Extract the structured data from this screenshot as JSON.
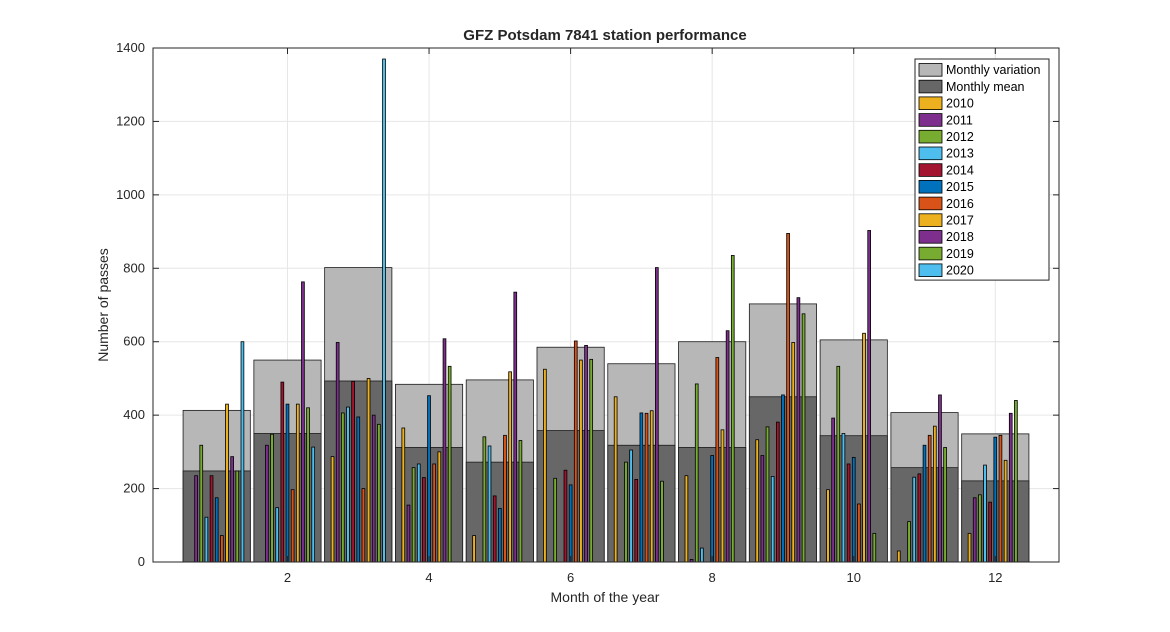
{
  "chart_data": {
    "type": "bar",
    "title": "GFZ Potsdam 7841 station performance",
    "xlabel": "Month of the year",
    "ylabel": "Number of passes",
    "xlim": [
      0.1,
      12.9
    ],
    "ylim": [
      0,
      1400
    ],
    "xticks": [
      2,
      4,
      6,
      8,
      10,
      12
    ],
    "yticks": [
      0,
      200,
      400,
      600,
      800,
      1000,
      1200,
      1400
    ],
    "grid": true,
    "legend_position": "top-right",
    "months": [
      1,
      2,
      3,
      4,
      5,
      6,
      7,
      8,
      9,
      10,
      11,
      12
    ],
    "background_series": [
      {
        "name": "Monthly variation",
        "color": "#b7b7b7",
        "values": [
          413,
          550,
          802,
          484,
          496,
          585,
          540,
          600,
          703,
          605,
          407,
          349
        ]
      },
      {
        "name": "Monthly mean",
        "color": "#676767",
        "values": [
          248,
          350,
          493,
          312,
          272,
          358,
          318,
          312,
          450,
          344,
          257,
          221
        ]
      }
    ],
    "series": [
      {
        "name": "2010",
        "color": "#EDB120",
        "values": [
          0,
          0,
          287,
          365,
          72,
          525,
          450,
          235,
          333,
          197,
          30,
          78
        ]
      },
      {
        "name": "2011",
        "color": "#7E2F8E",
        "values": [
          235,
          318,
          598,
          155,
          0,
          0,
          0,
          7,
          290,
          392,
          0,
          175
        ]
      },
      {
        "name": "2012",
        "color": "#77AC30",
        "values": [
          318,
          348,
          406,
          257,
          341,
          228,
          272,
          485,
          368,
          533,
          110,
          183
        ]
      },
      {
        "name": "2013",
        "color": "#4DBEEE",
        "values": [
          122,
          148,
          422,
          267,
          316,
          0,
          305,
          38,
          233,
          350,
          231,
          264
        ]
      },
      {
        "name": "2014",
        "color": "#A2142F",
        "values": [
          235,
          490,
          492,
          230,
          180,
          250,
          225,
          0,
          381,
          267,
          240,
          163
        ]
      },
      {
        "name": "2015",
        "color": "#0072BD",
        "values": [
          175,
          430,
          395,
          453,
          146,
          210,
          406,
          290,
          455,
          285,
          318,
          340
        ]
      },
      {
        "name": "2016",
        "color": "#D95319",
        "values": [
          72,
          197,
          200,
          267,
          345,
          602,
          405,
          557,
          895,
          158,
          345,
          345
        ]
      },
      {
        "name": "2017",
        "color": "#EDB120",
        "values": [
          430,
          430,
          500,
          300,
          518,
          550,
          412,
          360,
          598,
          623,
          370,
          277
        ]
      },
      {
        "name": "2018",
        "color": "#7E2F8E",
        "values": [
          287,
          763,
          400,
          608,
          735,
          590,
          802,
          630,
          720,
          903,
          455,
          405
        ]
      },
      {
        "name": "2019",
        "color": "#77AC30",
        "values": [
          248,
          420,
          375,
          533,
          331,
          552,
          220,
          835,
          676,
          78,
          312,
          440
        ]
      },
      {
        "name": "2020",
        "color": "#4DBEEE",
        "values": [
          600,
          313,
          1370,
          0,
          0,
          0,
          0,
          0,
          0,
          0,
          0,
          0
        ]
      }
    ]
  }
}
